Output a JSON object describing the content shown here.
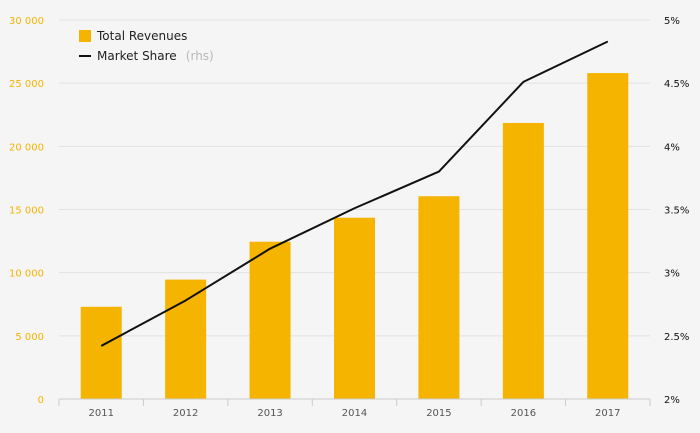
{
  "chart_data": {
    "type": "bar",
    "categories": [
      "2011",
      "2012",
      "2013",
      "2014",
      "2015",
      "2016",
      "2017"
    ],
    "series": [
      {
        "name": "Total Revenues",
        "type": "bar",
        "axis": "left",
        "values": [
          7300,
          9450,
          12450,
          14350,
          16050,
          21850,
          25800
        ]
      },
      {
        "name": "Market Share",
        "name_suffix": "(rhs)",
        "type": "line",
        "axis": "right",
        "values": [
          2.42,
          2.78,
          3.19,
          3.51,
          3.8,
          4.51,
          4.83
        ]
      }
    ],
    "y_left": {
      "ylim": [
        0,
        30000
      ],
      "ticks": [
        0,
        5000,
        10000,
        15000,
        20000,
        25000,
        30000
      ],
      "tick_labels": [
        "0",
        "5 000",
        "10 000",
        "15 000",
        "20 000",
        "25 000",
        "30 000"
      ]
    },
    "y_right": {
      "ylim": [
        2,
        5
      ],
      "ticks": [
        2,
        2.5,
        3,
        3.5,
        4,
        4.5,
        5
      ],
      "tick_labels": [
        "2%",
        "2.5%",
        "3%",
        "3.5%",
        "4%",
        "4.5%",
        "5%"
      ]
    },
    "grid": true,
    "legend_position": "top-left",
    "colors": {
      "bar": "#F5B400",
      "line": "#111111",
      "grid": "#e2e2e2",
      "left_axis_text": "#F5B400",
      "right_axis_text": "#111111",
      "background": "#f5f5f5"
    }
  }
}
